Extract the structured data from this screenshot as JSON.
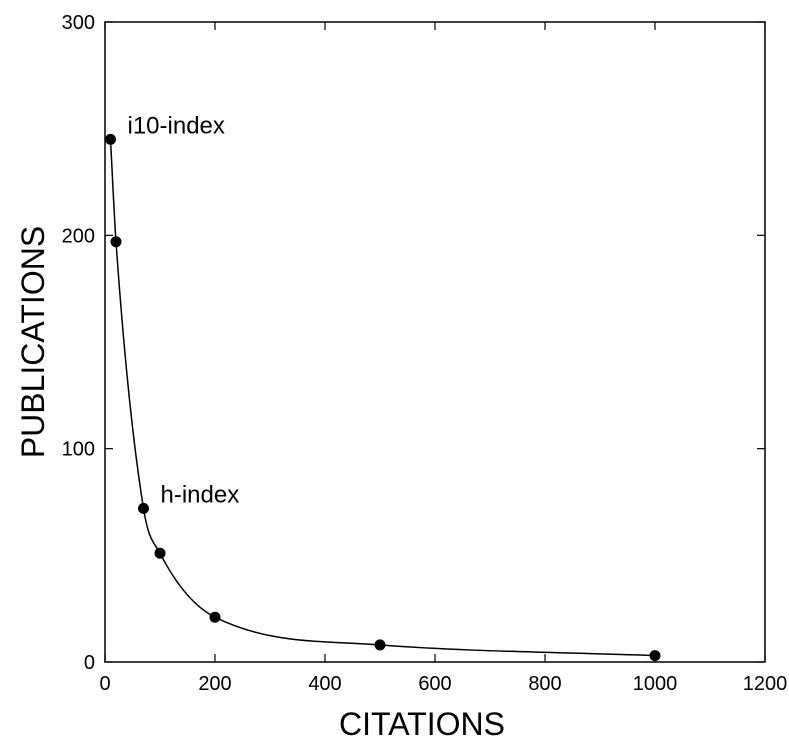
{
  "chart_data": {
    "type": "scatter",
    "title": "",
    "xlabel": "CITATIONS",
    "ylabel": "PUBLICATIONS",
    "xlim": [
      0,
      1200
    ],
    "ylim": [
      0,
      300
    ],
    "x_ticks": [
      0,
      200,
      400,
      600,
      800,
      1000,
      1200
    ],
    "y_ticks": [
      0,
      100,
      200,
      300
    ],
    "grid": false,
    "legend": "none",
    "series": [
      {
        "x": [
          10,
          20,
          70,
          100,
          200,
          500,
          1000
        ],
        "y": [
          245,
          197,
          72,
          51,
          21,
          8,
          3
        ],
        "marker": "circle",
        "color": "#000000",
        "line": "smooth"
      }
    ],
    "annotations": [
      {
        "text": "i10-index",
        "x": 10,
        "y": 245
      },
      {
        "text": "h-index",
        "x": 70,
        "y": 72
      }
    ]
  }
}
